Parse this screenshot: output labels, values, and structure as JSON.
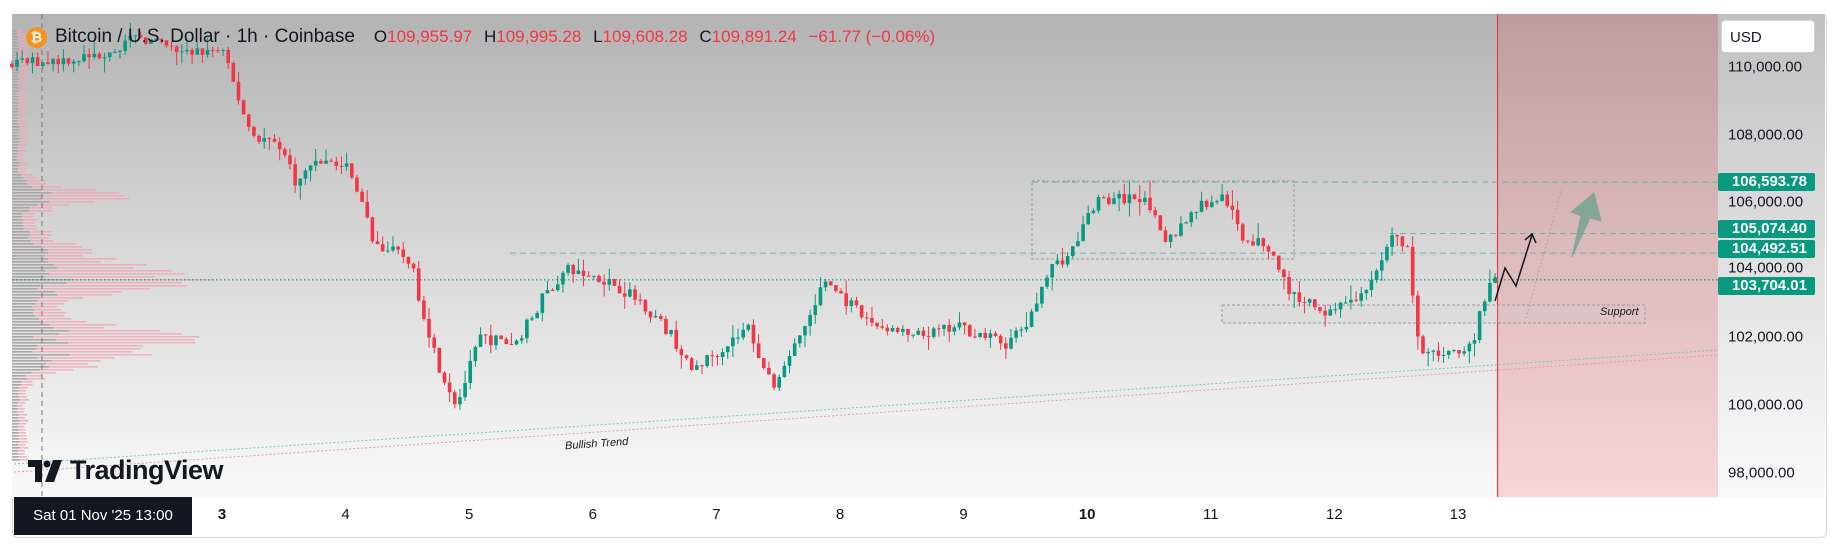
{
  "header": {
    "symbol_title": "Bitcoin / U.S. Dollar · 1h · Coinbase",
    "open_key": "O",
    "open": "109,955.97",
    "high_key": "H",
    "high": "109,995.28",
    "low_key": "L",
    "low": "109,608.28",
    "close_key": "C",
    "close": "109,891.24",
    "change": "−61.77 (−0.06%)"
  },
  "currency_button": "USD",
  "price_axis": {
    "labels": [
      "110,000.00",
      "108,000.00",
      "106,000.00",
      "104,000.00",
      "102,000.00",
      "100,000.00",
      "98,000.00"
    ],
    "tags": [
      {
        "label": "106,593.78",
        "price": 106593.78
      },
      {
        "label": "105,074.40",
        "price": 105074.4
      },
      {
        "label": "104,492.51",
        "price": 104492.51
      },
      {
        "label": "103,704.01",
        "price": 103704.01
      }
    ]
  },
  "time_axis": {
    "crosshair_label": "Sat 01 Nov '25   13:00",
    "labels": [
      "3",
      "4",
      "5",
      "6",
      "7",
      "8",
      "9",
      "10",
      "11",
      "12",
      "13"
    ]
  },
  "annotations": {
    "trend_label": "Bullish Trend",
    "support_label": "Support"
  },
  "logo_text": "TradingView",
  "colors": {
    "up": "#089981",
    "down": "#f23645",
    "accent": "#089981",
    "forecast_zone": "#f23645"
  },
  "chart_data": {
    "type": "candlestick",
    "title": "Bitcoin / U.S. Dollar · 1h · Coinbase",
    "ylim": [
      97500,
      111200
    ],
    "x_unit": "day of November 2025",
    "close_path": [
      [
        1.3,
        110100
      ],
      [
        1.96,
        110300
      ],
      [
        2.34,
        110900
      ],
      [
        2.67,
        110400
      ],
      [
        3.0,
        110500
      ],
      [
        3.14,
        109000
      ],
      [
        3.24,
        108000
      ],
      [
        3.47,
        107700
      ],
      [
        3.61,
        106500
      ],
      [
        3.75,
        107300
      ],
      [
        4.04,
        107000
      ],
      [
        4.23,
        104800
      ],
      [
        4.52,
        104300
      ],
      [
        4.61,
        103000
      ],
      [
        4.75,
        101200
      ],
      [
        4.9,
        100000
      ],
      [
        5.09,
        102000
      ],
      [
        5.37,
        101800
      ],
      [
        5.6,
        103200
      ],
      [
        5.79,
        104000
      ],
      [
        6.12,
        103700
      ],
      [
        6.41,
        103000
      ],
      [
        6.65,
        102000
      ],
      [
        6.79,
        101000
      ],
      [
        6.98,
        101500
      ],
      [
        7.26,
        102300
      ],
      [
        7.45,
        100500
      ],
      [
        7.74,
        102500
      ],
      [
        7.88,
        103700
      ],
      [
        8.21,
        102500
      ],
      [
        8.59,
        102000
      ],
      [
        8.97,
        102300
      ],
      [
        9.35,
        101800
      ],
      [
        9.54,
        102500
      ],
      [
        9.68,
        104000
      ],
      [
        9.87,
        104500
      ],
      [
        10.06,
        106000
      ],
      [
        10.48,
        106200
      ],
      [
        10.62,
        104700
      ],
      [
        10.87,
        105800
      ],
      [
        11.11,
        106200
      ],
      [
        11.25,
        105000
      ],
      [
        11.49,
        104600
      ],
      [
        11.64,
        103300
      ],
      [
        11.92,
        102800
      ],
      [
        12.26,
        103300
      ],
      [
        12.45,
        105000
      ],
      [
        12.59,
        104600
      ],
      [
        12.69,
        101500
      ],
      [
        12.83,
        101500
      ],
      [
        13.12,
        101800
      ],
      [
        13.21,
        103200
      ],
      [
        13.31,
        103704
      ]
    ],
    "horizontal_levels": [
      106593.78,
      105074.4,
      104492.51,
      103704.01
    ],
    "forecast_start_day": 13.32
  }
}
